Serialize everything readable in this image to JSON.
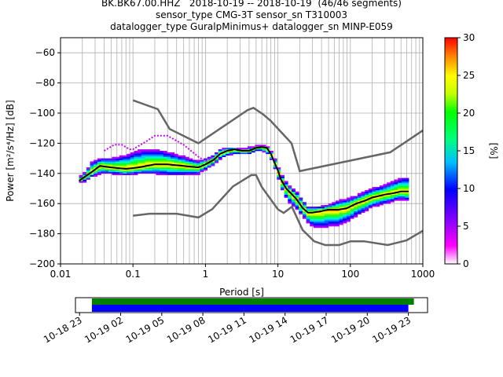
{
  "header": {
    "title_lines": [
      "BK.BK67.00.HHZ   2018-10-19 -- 2018-10-19  (46/46 segments)",
      "sensor_type CMG-3T sensor_sn T310003",
      "datalogger_type GuralpMinimus+ datalogger_sn MINP-E059"
    ]
  },
  "chart_data": [
    {
      "type": "heatmap",
      "xlabel": "Period [s]",
      "ylabel": "Power [m²/s⁴/Hz] [dB]",
      "x_scale": "log",
      "xlim": [
        0.01,
        1000
      ],
      "ylim": [
        -200,
        -50
      ],
      "x_ticks": [
        0.01,
        0.1,
        1,
        10,
        100,
        1000
      ],
      "x_tick_labels": [
        "0.01",
        "0.1",
        "1",
        "10",
        "100",
        "1000"
      ],
      "y_ticks": [
        -200,
        -180,
        -160,
        -140,
        -120,
        -100,
        -80,
        -60
      ],
      "y_tick_labels": [
        "−200",
        "−180",
        "−160",
        "−140",
        "−120",
        "−100",
        "−80",
        "−60"
      ],
      "grid": true,
      "colorbar": {
        "label": "[%]",
        "range": [
          0,
          30
        ],
        "ticks": [
          0,
          5,
          10,
          15,
          20,
          25,
          30
        ],
        "colormap": "pqlx"
      },
      "noise_models": {
        "color": "#666666",
        "high": {
          "name": "NHNM",
          "period": [
            0.1,
            0.22,
            0.32,
            0.8,
            3.8,
            4.6,
            6.3,
            7.9,
            15.4,
            20,
            354.8,
            1000
          ],
          "db": [
            -91.5,
            -97.4,
            -110.5,
            -120,
            -98,
            -96.5,
            -101,
            -105,
            -120,
            -138.5,
            -126,
            -111.5
          ]
        },
        "low": {
          "name": "NLNM",
          "period": [
            0.1,
            0.17,
            0.4,
            0.8,
            1.24,
            2.4,
            4.3,
            5,
            6,
            10,
            12,
            15.6,
            21.9,
            31.6,
            45,
            70,
            101,
            154,
            328,
            600,
            1000
          ],
          "db": [
            -168,
            -166.7,
            -166.7,
            -169.2,
            -163.7,
            -148.6,
            -141.1,
            -141.1,
            -149,
            -163.8,
            -166.2,
            -162.1,
            -177.5,
            -185,
            -187.5,
            -187.5,
            -185,
            -185,
            -187.5,
            -184.4,
            -178
          ]
        }
      },
      "mode_curve": {
        "color": "#000000",
        "period": [
          0.018,
          0.022,
          0.027,
          0.035,
          0.05,
          0.08,
          0.12,
          0.2,
          0.3,
          0.5,
          0.8,
          1.0,
          1.3,
          1.6,
          2.0,
          2.5,
          3.2,
          4.0,
          5.0,
          6.0,
          7.0,
          8.0,
          9.0,
          10,
          11,
          13,
          15,
          18,
          22,
          26,
          30,
          40,
          50,
          70,
          90,
          120,
          160,
          200,
          300,
          400,
          500,
          640
        ],
        "db": [
          -145,
          -142,
          -139,
          -135,
          -136,
          -137,
          -136,
          -134,
          -134,
          -135,
          -136,
          -134,
          -131,
          -127,
          -125,
          -124,
          -125,
          -125,
          -123,
          -122.5,
          -123,
          -127,
          -133,
          -138,
          -144,
          -150,
          -153,
          -157,
          -163,
          -166,
          -166,
          -165,
          -164,
          -164,
          -163,
          -160,
          -158,
          -156,
          -154,
          -153,
          -152,
          -152
        ]
      },
      "bands": {
        "period": [
          0.018,
          0.022,
          0.027,
          0.035,
          0.05,
          0.08,
          0.12,
          0.2,
          0.3,
          0.5,
          0.8,
          1.0,
          1.3,
          1.6,
          2.0,
          2.5,
          3.2,
          4.0,
          5.0,
          6.0,
          7.0,
          8.0,
          9.0,
          10,
          11,
          13,
          15,
          18,
          22,
          26,
          30,
          40,
          50,
          70,
          90,
          120,
          160,
          200,
          300,
          400,
          500,
          640
        ],
        "db_low": [
          -146,
          -145,
          -142,
          -140,
          -140,
          -141,
          -140,
          -140,
          -141,
          -141,
          -140,
          -137,
          -134,
          -130,
          -128,
          -127,
          -127,
          -127,
          -125,
          -125,
          -126,
          -130,
          -136,
          -142,
          -149,
          -156,
          -160,
          -163,
          -168,
          -172,
          -175,
          -176,
          -175,
          -174,
          -172,
          -168,
          -165,
          -162,
          -160,
          -158,
          -157,
          -158
        ],
        "db_high": [
          -143,
          -139,
          -133,
          -130,
          -130,
          -128,
          -125,
          -124,
          -126,
          -129,
          -132,
          -130,
          -128,
          -124,
          -123,
          -123,
          -124,
          -123,
          -122,
          -121.5,
          -122,
          -125,
          -130,
          -135,
          -140,
          -146,
          -149,
          -152,
          -158,
          -162,
          -162,
          -162,
          -161,
          -158,
          -157,
          -155,
          -152,
          -150,
          -148,
          -145,
          -143,
          -143
        ]
      },
      "outlier_curve": {
        "period": [
          0.04,
          0.055,
          0.07,
          0.09,
          0.1,
          0.15,
          0.2,
          0.3,
          0.5,
          0.8,
          1.0,
          1.3
        ],
        "db": [
          -125,
          -121,
          -121,
          -124,
          -124,
          -119,
          -115,
          -115,
          -121,
          -129,
          -132,
          -129
        ]
      }
    },
    {
      "type": "timeline",
      "tick_labels": [
        "10-18 23",
        "10-19 02",
        "10-19 05",
        "10-19 08",
        "10-19 11",
        "10-19 14",
        "10-19 17",
        "10-19 20",
        "10-19 23"
      ],
      "tick_hours": [
        -1,
        2,
        5,
        8,
        11,
        14,
        17,
        20,
        23
      ],
      "xlim_hours": [
        -1.3,
        24.4
      ],
      "series": [
        {
          "start_hour": -0.1,
          "end_hour": 23.4,
          "color": "#008000"
        },
        {
          "start_hour": -0.1,
          "end_hour": 23.0,
          "color": "#0000ff"
        }
      ]
    }
  ]
}
